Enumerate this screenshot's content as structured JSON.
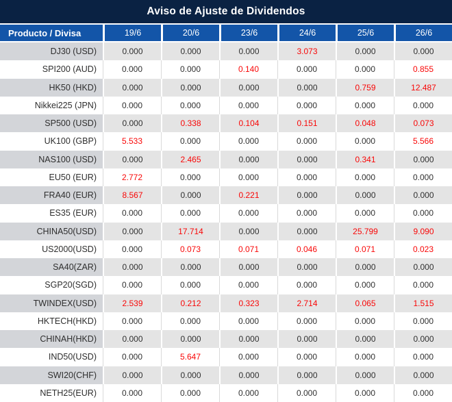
{
  "title": "Aviso de Ajuste de Dividendos",
  "table": {
    "product_header": "Producto / Divisa",
    "date_headers": [
      "19/6",
      "20/6",
      "23/6",
      "24/6",
      "25/6",
      "26/6"
    ],
    "rows": [
      {
        "product": "DJ30 (USD)",
        "values": [
          "0.000",
          "0.000",
          "0.000",
          "3.073",
          "0.000",
          "0.000"
        ],
        "red": [
          false,
          false,
          false,
          true,
          false,
          false
        ]
      },
      {
        "product": "SPI200 (AUD)",
        "values": [
          "0.000",
          "0.000",
          "0.140",
          "0.000",
          "0.000",
          "0.855"
        ],
        "red": [
          false,
          false,
          true,
          false,
          false,
          true
        ]
      },
      {
        "product": "HK50 (HKD)",
        "values": [
          "0.000",
          "0.000",
          "0.000",
          "0.000",
          "0.759",
          "12.487"
        ],
        "red": [
          false,
          false,
          false,
          false,
          true,
          true
        ]
      },
      {
        "product": "Nikkei225 (JPN)",
        "values": [
          "0.000",
          "0.000",
          "0.000",
          "0.000",
          "0.000",
          "0.000"
        ],
        "red": [
          false,
          false,
          false,
          false,
          false,
          false
        ]
      },
      {
        "product": "SP500 (USD)",
        "values": [
          "0.000",
          "0.338",
          "0.104",
          "0.151",
          "0.048",
          "0.073"
        ],
        "red": [
          false,
          true,
          true,
          true,
          true,
          true
        ]
      },
      {
        "product": "UK100 (GBP)",
        "values": [
          "5.533",
          "0.000",
          "0.000",
          "0.000",
          "0.000",
          "5.566"
        ],
        "red": [
          true,
          false,
          false,
          false,
          false,
          true
        ]
      },
      {
        "product": "NAS100 (USD)",
        "values": [
          "0.000",
          "2.465",
          "0.000",
          "0.000",
          "0.341",
          "0.000"
        ],
        "red": [
          false,
          true,
          false,
          false,
          true,
          false
        ]
      },
      {
        "product": "EU50 (EUR)",
        "values": [
          "2.772",
          "0.000",
          "0.000",
          "0.000",
          "0.000",
          "0.000"
        ],
        "red": [
          true,
          false,
          false,
          false,
          false,
          false
        ]
      },
      {
        "product": "FRA40 (EUR)",
        "values": [
          "8.567",
          "0.000",
          "0.221",
          "0.000",
          "0.000",
          "0.000"
        ],
        "red": [
          true,
          false,
          true,
          false,
          false,
          false
        ]
      },
      {
        "product": "ES35 (EUR)",
        "values": [
          "0.000",
          "0.000",
          "0.000",
          "0.000",
          "0.000",
          "0.000"
        ],
        "red": [
          false,
          false,
          false,
          false,
          false,
          false
        ]
      },
      {
        "product": "CHINA50(USD)",
        "values": [
          "0.000",
          "17.714",
          "0.000",
          "0.000",
          "25.799",
          "9.090"
        ],
        "red": [
          false,
          true,
          false,
          false,
          true,
          true
        ]
      },
      {
        "product": "US2000(USD)",
        "values": [
          "0.000",
          "0.073",
          "0.071",
          "0.046",
          "0.071",
          "0.023"
        ],
        "red": [
          false,
          true,
          true,
          true,
          true,
          true
        ]
      },
      {
        "product": "SA40(ZAR)",
        "values": [
          "0.000",
          "0.000",
          "0.000",
          "0.000",
          "0.000",
          "0.000"
        ],
        "red": [
          false,
          false,
          false,
          false,
          false,
          false
        ]
      },
      {
        "product": "SGP20(SGD)",
        "values": [
          "0.000",
          "0.000",
          "0.000",
          "0.000",
          "0.000",
          "0.000"
        ],
        "red": [
          false,
          false,
          false,
          false,
          false,
          false
        ]
      },
      {
        "product": "TWINDEX(USD)",
        "values": [
          "2.539",
          "0.212",
          "0.323",
          "2.714",
          "0.065",
          "1.515"
        ],
        "red": [
          true,
          true,
          true,
          true,
          true,
          true
        ]
      },
      {
        "product": "HKTECH(HKD)",
        "values": [
          "0.000",
          "0.000",
          "0.000",
          "0.000",
          "0.000",
          "0.000"
        ],
        "red": [
          false,
          false,
          false,
          false,
          false,
          false
        ]
      },
      {
        "product": "CHINAH(HKD)",
        "values": [
          "0.000",
          "0.000",
          "0.000",
          "0.000",
          "0.000",
          "0.000"
        ],
        "red": [
          false,
          false,
          false,
          false,
          false,
          false
        ]
      },
      {
        "product": "IND50(USD)",
        "values": [
          "0.000",
          "5.647",
          "0.000",
          "0.000",
          "0.000",
          "0.000"
        ],
        "red": [
          false,
          true,
          false,
          false,
          false,
          false
        ]
      },
      {
        "product": "SWI20(CHF)",
        "values": [
          "0.000",
          "0.000",
          "0.000",
          "0.000",
          "0.000",
          "0.000"
        ],
        "red": [
          false,
          false,
          false,
          false,
          false,
          false
        ]
      },
      {
        "product": "NETH25(EUR)",
        "values": [
          "0.000",
          "0.000",
          "0.000",
          "0.000",
          "0.000",
          "0.000"
        ],
        "red": [
          false,
          false,
          false,
          false,
          false,
          false
        ]
      }
    ]
  },
  "colors": {
    "title_bar_bg": "#0a2243",
    "header_bg": "#1355a8",
    "header_text": "#ffffff",
    "row_alt_gray": "#e4e4e4",
    "product_col_gray": "#d3d5d9",
    "row_white": "#ffffff",
    "value_text": "#303030",
    "highlight_red": "#f90606"
  }
}
